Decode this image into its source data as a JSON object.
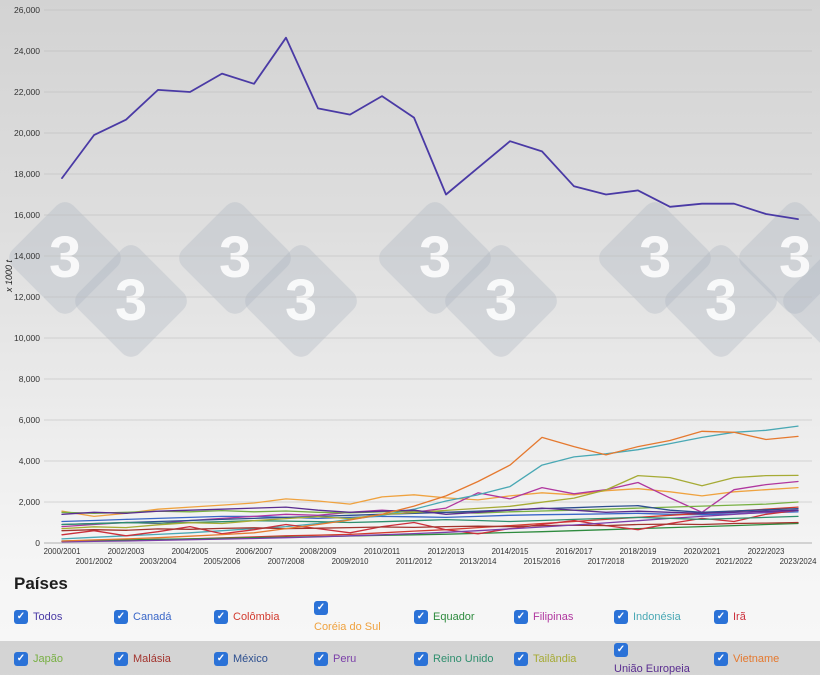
{
  "page": {
    "watermark_glyph": "3"
  },
  "legend": {
    "title": "Países"
  },
  "chart_data": {
    "type": "line",
    "title": "",
    "xlabel": "",
    "ylabel": "x 1000 t",
    "ylim": [
      0,
      26000
    ],
    "ytick_step": 2000,
    "grid": true,
    "legend_position": "bottom",
    "categories": [
      "2000/2001",
      "2001/2002",
      "2002/2003",
      "2003/2004",
      "2004/2005",
      "2005/2006",
      "2006/2007",
      "2007/2008",
      "2008/2009",
      "2009/2010",
      "2010/2011",
      "2011/2012",
      "2012/2013",
      "2013/2014",
      "2014/2015",
      "2015/2016",
      "2016/2017",
      "2017/2018",
      "2018/2019",
      "2019/2020",
      "2020/2021",
      "2021/2022",
      "2022/2023",
      "2023/2024"
    ],
    "series": [
      {
        "name": "Todos",
        "color": "#4a3aa5",
        "checked": true,
        "values": [
          17800,
          19900,
          20650,
          22100,
          22000,
          22900,
          22400,
          24650,
          21200,
          20900,
          21800,
          20750,
          17000,
          18300,
          19600,
          19100,
          17400,
          17000,
          17200,
          16400,
          16550,
          16550,
          16050,
          15800
        ]
      },
      {
        "name": "Canadá",
        "color": "#3a67c8",
        "checked": true,
        "values": [
          1050,
          1100,
          1150,
          1200,
          1250,
          1300,
          1300,
          1250,
          1200,
          1250,
          1300,
          1280,
          1250,
          1300,
          1350,
          1380,
          1400,
          1420,
          1450,
          1400,
          1380,
          1420,
          1480,
          1520
        ]
      },
      {
        "name": "Colômbia",
        "color": "#d23b2f",
        "checked": true,
        "values": [
          80,
          100,
          120,
          150,
          200,
          250,
          300,
          350,
          380,
          420,
          500,
          580,
          650,
          750,
          850,
          950,
          1050,
          1150,
          1250,
          1350,
          1450,
          1550,
          1650,
          1750
        ]
      },
      {
        "name": "Coréia do Sul",
        "color": "#efa23f",
        "checked": true,
        "values": [
          1550,
          1300,
          1450,
          1650,
          1750,
          1850,
          1950,
          2150,
          2050,
          1900,
          2250,
          2350,
          2200,
          2100,
          2300,
          2450,
          2350,
          2550,
          2650,
          2500,
          2300,
          2500,
          2600,
          2700
        ]
      },
      {
        "name": "Equador",
        "color": "#2e8b3e",
        "checked": true,
        "values": [
          100,
          120,
          150,
          180,
          200,
          230,
          260,
          290,
          310,
          340,
          370,
          400,
          430,
          470,
          510,
          550,
          600,
          650,
          700,
          750,
          800,
          850,
          900,
          950
        ]
      },
      {
        "name": "Filipinas",
        "color": "#b0379f",
        "checked": true,
        "values": [
          800,
          900,
          1000,
          950,
          1100,
          1200,
          1300,
          1400,
          1350,
          1500,
          1600,
          1500,
          1700,
          2450,
          2150,
          2700,
          2400,
          2600,
          2950,
          2200,
          1500,
          2600,
          2850,
          3000
        ]
      },
      {
        "name": "Indonésia",
        "color": "#49a8b4",
        "checked": true,
        "values": [
          200,
          280,
          350,
          420,
          500,
          600,
          700,
          800,
          950,
          1150,
          1350,
          1650,
          2050,
          2350,
          2750,
          3800,
          4200,
          4350,
          4550,
          4850,
          5150,
          5400,
          5500,
          5700
        ]
      },
      {
        "name": "Irã",
        "color": "#cc2f3b",
        "checked": true,
        "values": [
          400,
          600,
          350,
          550,
          800,
          450,
          650,
          900,
          700,
          500,
          800,
          1000,
          650,
          450,
          700,
          900,
          1100,
          850,
          650,
          950,
          1200,
          1050,
          1400,
          1600
        ]
      },
      {
        "name": "Japão",
        "color": "#78b043",
        "checked": true,
        "values": [
          1500,
          1450,
          1500,
          1550,
          1520,
          1580,
          1520,
          1560,
          1500,
          1470,
          1520,
          1560,
          1500,
          1460,
          1520,
          1560,
          1600,
          1650,
          1700,
          1750,
          1800,
          1850,
          1900,
          2000
        ]
      },
      {
        "name": "Malásia",
        "color": "#a3342e",
        "checked": true,
        "values": [
          600,
          650,
          620,
          690,
          670,
          710,
          740,
          700,
          720,
          750,
          780,
          760,
          800,
          820,
          800,
          850,
          870,
          850,
          900,
          920,
          900,
          950,
          970,
          1000
        ]
      },
      {
        "name": "México",
        "color": "#2d4f8f",
        "checked": true,
        "values": [
          900,
          950,
          1000,
          1050,
          1100,
          1150,
          1200,
          1250,
          1300,
          1350,
          1400,
          1450,
          1500,
          1550,
          1620,
          1680,
          1720,
          1780,
          1820,
          1600,
          1500,
          1560,
          1620,
          1680
        ]
      },
      {
        "name": "Peru",
        "color": "#7b3fa9",
        "checked": true,
        "values": [
          60,
          80,
          100,
          130,
          160,
          190,
          220,
          260,
          300,
          350,
          400,
          460,
          520,
          600,
          690,
          780,
          880,
          980,
          1090,
          1200,
          1300,
          1400,
          1500,
          1600
        ]
      },
      {
        "name": "Reino Unido",
        "color": "#2f8f6e",
        "checked": true,
        "values": [
          900,
          940,
          990,
          970,
          1000,
          1040,
          1090,
          1070,
          1040,
          1000,
          1040,
          1090,
          1140,
          1100,
          1050,
          1100,
          1150,
          1200,
          1250,
          1200,
          1150,
          1200,
          1250,
          1300
        ]
      },
      {
        "name": "Tailândia",
        "color": "#a6ab35",
        "checked": true,
        "values": [
          700,
          790,
          750,
          890,
          990,
          950,
          1090,
          1190,
          1290,
          1190,
          1390,
          1490,
          1590,
          1690,
          1790,
          1990,
          2190,
          2590,
          3290,
          3190,
          2790,
          3190,
          3290,
          3300
        ]
      },
      {
        "name": "União Europeia",
        "color": "#5a2d90",
        "checked": true,
        "values": [
          1400,
          1500,
          1450,
          1550,
          1600,
          1650,
          1700,
          1750,
          1600,
          1500,
          1550,
          1600,
          1400,
          1500,
          1600,
          1700,
          1600,
          1500,
          1550,
          1500,
          1450,
          1500,
          1550,
          1600
        ]
      },
      {
        "name": "Vietname",
        "color": "#e5792f",
        "checked": true,
        "values": [
          100,
          150,
          200,
          260,
          330,
          410,
          500,
          700,
          900,
          1120,
          1400,
          1800,
          2300,
          3000,
          3800,
          5150,
          4700,
          4300,
          4700,
          5000,
          5450,
          5400,
          5050,
          5200
        ]
      }
    ]
  }
}
